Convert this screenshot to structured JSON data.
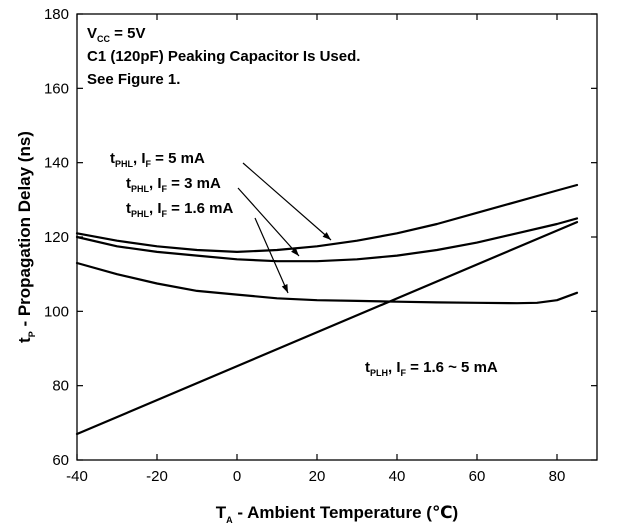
{
  "chart_data": {
    "type": "line",
    "xlabel": {
      "main": "T",
      "sub": "A",
      "rest": " - Ambient Temperature (℃)"
    },
    "ylabel": {
      "main": "t",
      "sub": "P",
      "rest": " - Propagation Delay (ns)"
    },
    "xlim": [
      -40,
      90
    ],
    "ylim": [
      60,
      180
    ],
    "xticks": [
      -40,
      -20,
      0,
      20,
      40,
      60,
      80
    ],
    "yticks": [
      60,
      80,
      100,
      120,
      140,
      160,
      180
    ],
    "grid": false,
    "conditions": [
      {
        "main": "V",
        "sub": "CC",
        "rest": " = 5V"
      },
      {
        "main": "C1 (120pF) Peaking Capacitor Is Used.",
        "sub": "",
        "rest": ""
      },
      {
        "main": "See Figure 1.",
        "sub": "",
        "rest": ""
      }
    ],
    "series": [
      {
        "label": {
          "t": "t",
          "tsub": "PHL",
          "mid": ", I",
          "isub": "F",
          "rest": " = 5 mA"
        },
        "x": [
          -40,
          -30,
          -20,
          -10,
          0,
          10,
          20,
          30,
          40,
          50,
          60,
          70,
          80,
          85
        ],
        "y": [
          121,
          119,
          117.5,
          116.5,
          116,
          116.5,
          117.5,
          119,
          121,
          123.5,
          126.5,
          129.5,
          132.5,
          134
        ]
      },
      {
        "label": {
          "t": "t",
          "tsub": "PHL",
          "mid": ", I",
          "isub": "F",
          "rest": " = 3 mA"
        },
        "x": [
          -40,
          -30,
          -20,
          -10,
          0,
          10,
          20,
          30,
          40,
          50,
          60,
          70,
          80,
          85
        ],
        "y": [
          120,
          117.5,
          116,
          115,
          114,
          113.5,
          113.5,
          114,
          115,
          116.5,
          118.5,
          121,
          123.5,
          125
        ]
      },
      {
        "label": {
          "t": "t",
          "tsub": "PHL",
          "mid": ", I",
          "isub": "F",
          "rest": " = 1.6 mA"
        },
        "x": [
          -40,
          -30,
          -20,
          -10,
          0,
          10,
          20,
          30,
          40,
          50,
          60,
          70,
          75,
          80,
          85
        ],
        "y": [
          113,
          110,
          107.5,
          105.5,
          104.5,
          103.5,
          103,
          102.8,
          102.6,
          102.4,
          102.3,
          102.2,
          102.3,
          103,
          105
        ]
      },
      {
        "label": {
          "t": "t",
          "tsub": "PLH",
          "mid": ", I",
          "isub": "F",
          "rest": " = 1.6 ~ 5 mA"
        },
        "x": [
          -40,
          85
        ],
        "y": [
          67,
          124
        ]
      }
    ]
  }
}
